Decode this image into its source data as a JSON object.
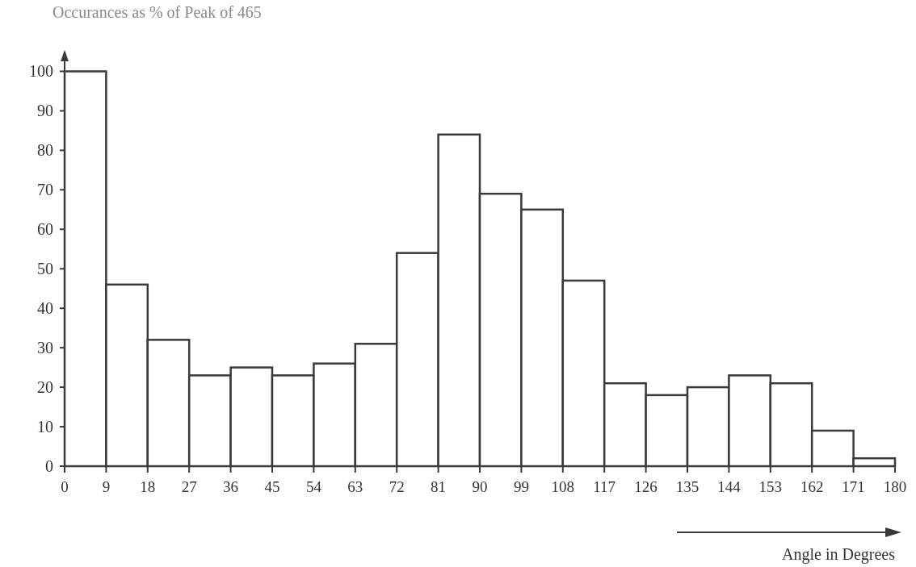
{
  "chart_data": {
    "type": "histogram",
    "title": "Occurances as % of Peak of 465",
    "xlabel": "Angle in Degrees",
    "bins": [
      0,
      9,
      18,
      27,
      36,
      45,
      54,
      63,
      72,
      81,
      90,
      99,
      108,
      117,
      126,
      135,
      144,
      153,
      162,
      171,
      180
    ],
    "values": [
      100,
      46,
      32,
      23,
      25,
      23,
      26,
      31,
      54,
      84,
      69,
      65,
      47,
      21,
      18,
      20,
      23,
      21,
      9,
      2
    ],
    "color": "#ffffff",
    "xlim": [
      0,
      180
    ],
    "xticks": [
      0,
      9,
      18,
      27,
      36,
      45,
      54,
      63,
      72,
      81,
      90,
      99,
      108,
      117,
      126,
      135,
      144,
      153,
      162,
      171,
      180
    ],
    "ylim": [
      0,
      105
    ],
    "yticks": [
      0,
      10,
      20,
      30,
      40,
      50,
      60,
      70,
      80,
      90,
      100
    ]
  }
}
